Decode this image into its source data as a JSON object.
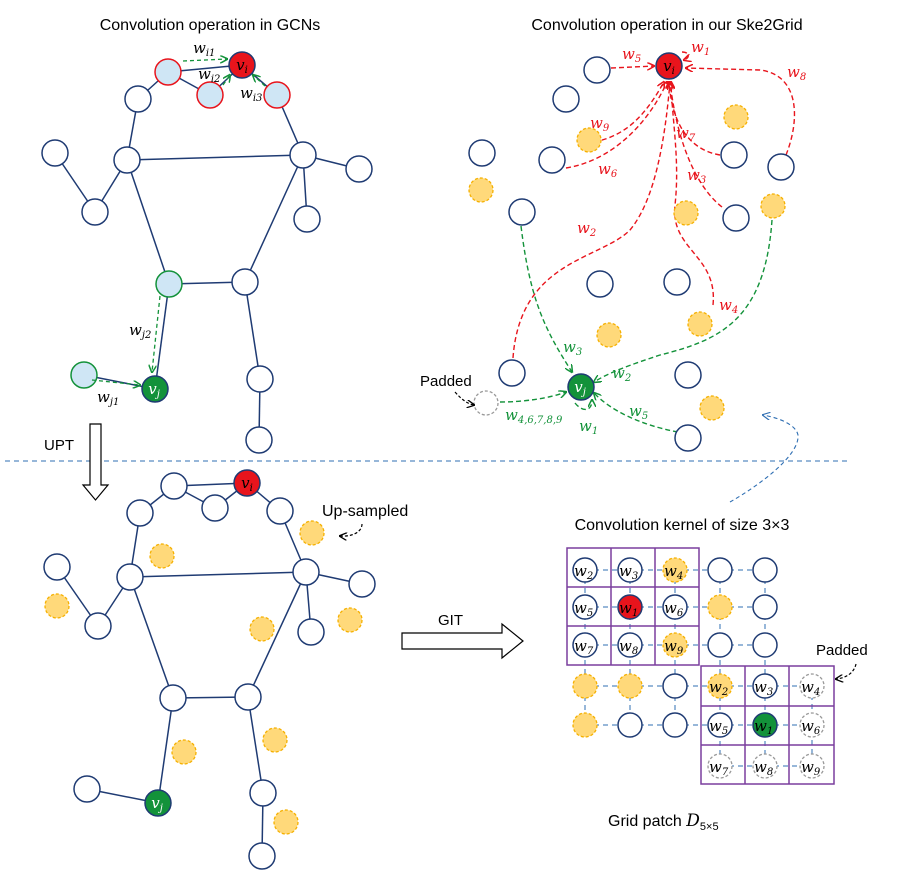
{
  "titles": {
    "gcn": "Convolution operation in GCNs",
    "ske2grid": "Convolution operation in our Ske2Grid",
    "kernel": "Convolution kernel of size 3×3",
    "grid_patch_main": "Grid patch ",
    "grid_patch_sym": "D",
    "grid_patch_sub": "5×5"
  },
  "labels": {
    "upt": "UPT",
    "git": "GIT",
    "padded": "Padded",
    "up_sampled": "Up-sampled"
  },
  "symbols": {
    "v": "v",
    "i": "i",
    "j": "j",
    "w": "w"
  },
  "gcn_weights": {
    "wi1": "i1",
    "wi2": "i2",
    "wi3": "i3",
    "wj1": "j1",
    "wj2": "j2"
  },
  "ske_red_weights": [
    "1",
    "5",
    "9",
    "6",
    "7",
    "3",
    "8",
    "2",
    "4"
  ],
  "ske_green_weights": {
    "w3": "3",
    "w2": "2",
    "w5": "5",
    "w1": "1",
    "wpad": "4,6,7,8,9"
  },
  "kernel_top": [
    "2",
    "3",
    "4",
    "5",
    "1",
    "6",
    "7",
    "8",
    "9"
  ],
  "kernel_bottom": [
    "2",
    "3",
    "4",
    "5",
    "1",
    "6",
    "7",
    "8",
    "9"
  ],
  "colors": {
    "node_stroke": "#1f3b73",
    "red": "#e8141c",
    "green": "#13923a",
    "light_blue": "#cfe6f5",
    "yellow": "#ffd97a",
    "yellow_stroke": "#f5b000",
    "purple": "#7a3e9d",
    "red_arrow": "#e8141c",
    "green_arrow": "#13923a",
    "blue_dash": "#2f6fb3"
  }
}
